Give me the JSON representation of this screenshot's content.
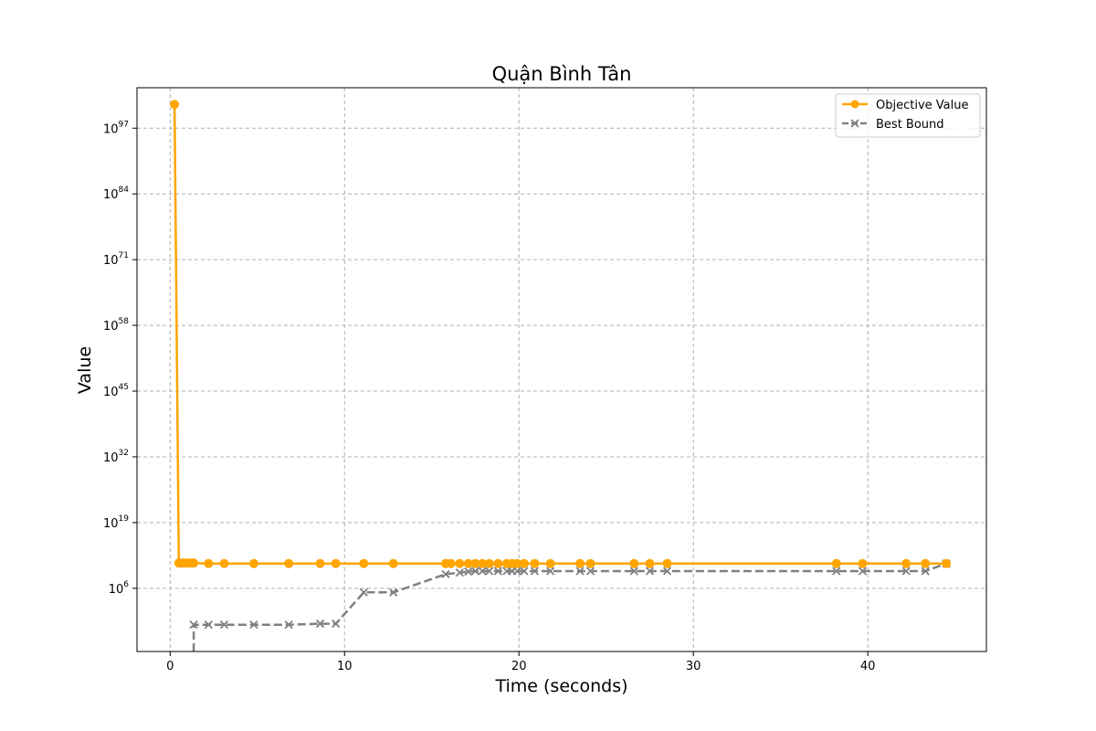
{
  "chart_data": {
    "type": "line",
    "title": "Quận Bình Tân",
    "xlabel": "Time (seconds)",
    "ylabel": "Value",
    "y_scale": "log",
    "xlim": [
      -1.9,
      46.8
    ],
    "ylog10lim": [
      -6.5,
      105
    ],
    "x_ticks": [
      {
        "value": 0,
        "label": "0"
      },
      {
        "value": 10,
        "label": "10"
      },
      {
        "value": 20,
        "label": "20"
      },
      {
        "value": 30,
        "label": "30"
      },
      {
        "value": 40,
        "label": "40"
      }
    ],
    "y_ticks": [
      {
        "exp": 6,
        "base": "10",
        "power": "6"
      },
      {
        "exp": 19,
        "base": "10",
        "power": "19"
      },
      {
        "exp": 32,
        "base": "10",
        "power": "32"
      },
      {
        "exp": 45,
        "base": "10",
        "power": "45"
      },
      {
        "exp": 58,
        "base": "10",
        "power": "58"
      },
      {
        "exp": 71,
        "base": "10",
        "power": "71"
      },
      {
        "exp": 84,
        "base": "10",
        "power": "84"
      },
      {
        "exp": 97,
        "base": "10",
        "power": "97"
      }
    ],
    "grid": true,
    "legend_position": "top-right",
    "series": [
      {
        "name": "Objective Value",
        "color": "#ffa500",
        "line_style": "solid",
        "marker": "circle",
        "x": [
          0.25,
          0.5,
          0.7,
          0.9,
          1.1,
          1.35,
          2.2,
          3.1,
          4.8,
          6.8,
          8.6,
          9.5,
          11.1,
          12.8,
          15.8,
          16.1,
          16.6,
          17.1,
          17.5,
          17.9,
          18.3,
          18.8,
          19.3,
          19.6,
          19.9,
          20.3,
          20.9,
          21.8,
          23.5,
          24.1,
          26.6,
          27.5,
          28.5,
          38.2,
          39.7,
          42.2,
          43.3,
          44.5
        ],
        "y_log10": [
          101.7,
          11,
          11,
          11,
          11,
          11,
          10.9,
          10.9,
          10.9,
          10.9,
          10.9,
          10.9,
          10.9,
          10.9,
          10.9,
          10.9,
          10.9,
          10.9,
          10.9,
          10.9,
          10.9,
          10.9,
          10.9,
          10.9,
          10.9,
          10.9,
          10.9,
          10.9,
          10.9,
          10.9,
          10.9,
          10.9,
          10.9,
          10.9,
          10.9,
          10.9,
          10.9,
          10.9
        ]
      },
      {
        "name": "Best Bound",
        "color": "#808080",
        "line_style": "dashed",
        "marker": "x",
        "x": [
          1.35,
          1.35,
          2.2,
          3.1,
          4.8,
          6.8,
          8.6,
          9.5,
          11.1,
          12.8,
          15.8,
          16.6,
          17.1,
          17.5,
          17.9,
          18.3,
          18.8,
          19.3,
          19.6,
          19.9,
          20.3,
          20.9,
          21.8,
          23.5,
          24.1,
          26.6,
          27.5,
          28.5,
          38.2,
          39.7,
          42.2,
          43.3,
          44.5
        ],
        "y_log10": [
          -6.5,
          -1.2,
          -1.2,
          -1.2,
          -1.2,
          -1.2,
          -1.0,
          -1.0,
          5.2,
          5.2,
          8.8,
          9.1,
          9.3,
          9.4,
          9.4,
          9.4,
          9.4,
          9.4,
          9.4,
          9.4,
          9.4,
          9.4,
          9.4,
          9.4,
          9.4,
          9.4,
          9.4,
          9.4,
          9.4,
          9.4,
          9.4,
          9.4,
          10.9
        ],
        "markers_from_index": 1
      }
    ]
  }
}
